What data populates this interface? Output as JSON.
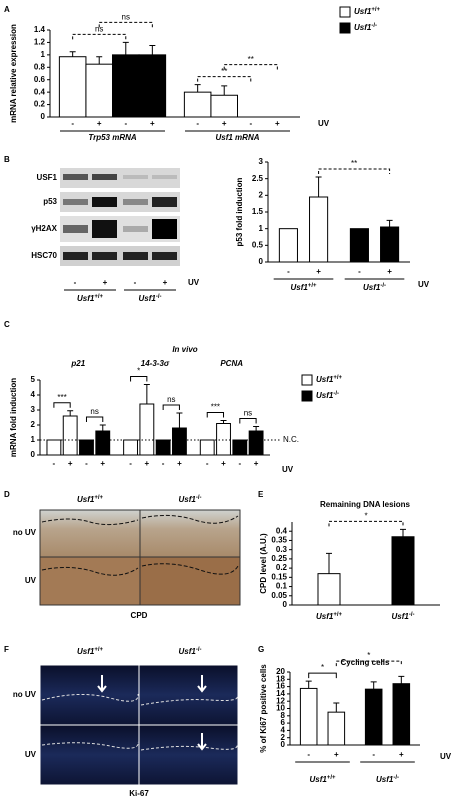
{
  "panels": [
    "A",
    "B",
    "C",
    "D",
    "E",
    "F",
    "G"
  ],
  "chart_data": [
    {
      "type": "bar",
      "ylabel": "mRNA relative expression",
      "ylim": [
        0,
        1.4
      ],
      "yticks": [
        0,
        0.2,
        0.4,
        0.6,
        0.8,
        1,
        1.2,
        1.4
      ],
      "values": [
        0.97,
        0.85,
        1.0,
        1.0,
        0.4,
        0.35,
        0,
        0
      ],
      "errors": [
        0.08,
        0.12,
        0.2,
        0.15,
        0.12,
        0.15,
        0,
        0
      ],
      "colors": [
        "#ffffff",
        "#ffffff",
        "#000000",
        "#000000",
        "#ffffff",
        "#ffffff",
        "#000000",
        "#000000"
      ],
      "bar_labels": [
        "-",
        "+",
        "-",
        "+",
        "-",
        "+",
        "-",
        "+"
      ],
      "groups": [
        "Trp53 mRNA",
        "Usf1 mRNA"
      ],
      "condition": "UV",
      "legend": [
        {
          "name": "Usf1",
          "sup": "+/+",
          "color": "#ffffff"
        },
        {
          "name": "Usf1",
          "sup": "-/-",
          "color": "#000000"
        }
      ],
      "annotations": [
        {
          "text": "ns",
          "bars": [
            0,
            2
          ],
          "dashed": true
        },
        {
          "text": "ns",
          "bars": [
            1,
            3
          ],
          "dashed": true
        },
        {
          "text": "**",
          "bars": [
            4,
            6
          ],
          "dashed": true
        },
        {
          "text": "**",
          "bars": [
            5,
            7
          ],
          "dashed": true
        }
      ]
    },
    {
      "type": "bar",
      "ylabel": "p53 fold induction",
      "ylim": [
        0,
        3
      ],
      "yticks": [
        0,
        0.5,
        1,
        1.5,
        2,
        2.5,
        3
      ],
      "values": [
        1,
        1.95,
        1,
        1.05
      ],
      "errors": [
        0,
        0.6,
        0,
        0.2
      ],
      "colors": [
        "#ffffff",
        "#ffffff",
        "#000000",
        "#000000"
      ],
      "bar_labels": [
        "-",
        "+",
        "-",
        "+"
      ],
      "groups": [
        {
          "name": "Usf1",
          "sup": "+/+"
        },
        {
          "name": "Usf1",
          "sup": "-/-"
        }
      ],
      "condition": "UV",
      "annotations": [
        {
          "text": "**",
          "bars": [
            1,
            3
          ],
          "dashed": true
        }
      ]
    },
    {
      "type": "bar",
      "subtitle": "In vivo",
      "ylabel": "mRNA fold induction",
      "ylim": [
        0,
        5
      ],
      "yticks": [
        0,
        1,
        2,
        3,
        4,
        5
      ],
      "values": [
        1,
        2.6,
        1,
        1.6,
        1,
        3.4,
        1,
        1.8,
        1,
        2.1,
        1,
        1.6
      ],
      "errors": [
        0,
        0.35,
        0,
        0.4,
        0,
        1.3,
        0,
        1.0,
        0,
        0.2,
        0,
        0.3
      ],
      "colors": [
        "#ffffff",
        "#ffffff",
        "#000000",
        "#000000",
        "#ffffff",
        "#ffffff",
        "#000000",
        "#000000",
        "#ffffff",
        "#ffffff",
        "#000000",
        "#000000"
      ],
      "bar_labels": [
        "-",
        "+",
        "-",
        "+",
        "-",
        "+",
        "-",
        "+",
        "-",
        "+",
        "-",
        "+"
      ],
      "groups": [
        "p21",
        "14-3-3σ",
        "PCNA"
      ],
      "condition": "UV",
      "reference": {
        "value": 1,
        "label": "N.C."
      },
      "legend": [
        {
          "name": "Usf1",
          "sup": "+/+",
          "color": "#ffffff"
        },
        {
          "name": "Usf1",
          "sup": "-/-",
          "color": "#000000"
        }
      ],
      "annotations": [
        {
          "text": "***",
          "bars": [
            0,
            1
          ],
          "dashed": false
        },
        {
          "text": "ns",
          "bars": [
            2,
            3
          ],
          "dashed": false
        },
        {
          "text": "*",
          "bars": [
            4,
            5
          ],
          "dashed": false
        },
        {
          "text": "ns",
          "bars": [
            6,
            7
          ],
          "dashed": false
        },
        {
          "text": "***",
          "bars": [
            8,
            9
          ],
          "dashed": false
        },
        {
          "text": "ns",
          "bars": [
            10,
            11
          ],
          "dashed": false
        }
      ]
    },
    {
      "type": "bar",
      "title": "Remaining DNA lesions",
      "ylabel": "CPD level (A.U.)",
      "ylim": [
        0,
        0.45
      ],
      "yticks": [
        0,
        0.05,
        0.1,
        0.15,
        0.2,
        0.25,
        0.3,
        0.35,
        0.4
      ],
      "values": [
        0.17,
        0.37
      ],
      "errors": [
        0.11,
        0.04
      ],
      "colors": [
        "#ffffff",
        "#000000"
      ],
      "groups": [
        {
          "name": "Usf1",
          "sup": "+/+"
        },
        {
          "name": "Usf1",
          "sup": "-/-"
        }
      ],
      "annotations": [
        {
          "text": "*",
          "bars": [
            0,
            1
          ],
          "dashed": true
        }
      ]
    },
    {
      "type": "bar",
      "title": "Cycling cells",
      "ylabel": "% of Ki67 positive cells",
      "ylim": [
        0,
        20
      ],
      "yticks": [
        0,
        2,
        4,
        6,
        8,
        10,
        12,
        14,
        16,
        18,
        20
      ],
      "values": [
        15.5,
        9,
        15.3,
        16.8
      ],
      "errors": [
        2,
        2.5,
        2,
        2
      ],
      "colors": [
        "#ffffff",
        "#ffffff",
        "#000000",
        "#000000"
      ],
      "bar_labels": [
        "-",
        "+",
        "-",
        "+"
      ],
      "groups": [
        {
          "name": "Usf1",
          "sup": "+/+"
        },
        {
          "name": "Usf1",
          "sup": "-/-"
        }
      ],
      "condition": "UV",
      "annotations": [
        {
          "text": "*",
          "bars": [
            0,
            1
          ],
          "dashed": false
        },
        {
          "text": "*",
          "bars": [
            1,
            3
          ],
          "dashed": true
        }
      ]
    }
  ],
  "blot": {
    "labels": [
      "USF1",
      "p53",
      "γH2AX",
      "HSC70"
    ],
    "bar_labels": [
      "-",
      "+",
      "-",
      "+"
    ],
    "groups": [
      {
        "name": "Usf1",
        "sup": "+/+"
      },
      {
        "name": "Usf1",
        "sup": "-/-"
      }
    ],
    "condition": "UV"
  },
  "cpd_images": {
    "columns": [
      {
        "name": "Usf1",
        "sup": "+/+"
      },
      {
        "name": "Usf1",
        "sup": "-/-"
      }
    ],
    "rows": [
      "no UV",
      "UV"
    ],
    "caption": "CPD"
  },
  "ki67_images": {
    "columns": [
      {
        "name": "Usf1",
        "sup": "+/+"
      },
      {
        "name": "Usf1",
        "sup": "-/-"
      }
    ],
    "rows": [
      "no UV",
      "UV"
    ],
    "caption": "Ki-67"
  }
}
